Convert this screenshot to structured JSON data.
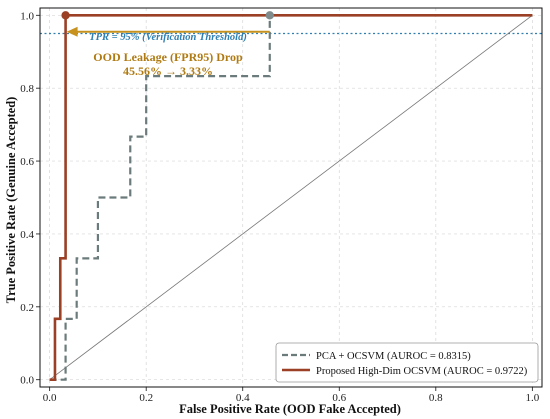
{
  "chart_data": {
    "type": "line",
    "xlabel": "False Positive Rate (OOD Fake Accepted)",
    "ylabel": "True Positive Rate (Genuine Accepted)",
    "xlim": [
      -0.02,
      1.02
    ],
    "ylim": [
      -0.02,
      1.02
    ],
    "xticks": [
      "0.0",
      "0.2",
      "0.4",
      "0.6",
      "0.8",
      "1.0"
    ],
    "yticks": [
      "0.0",
      "0.2",
      "0.4",
      "0.6",
      "0.8",
      "1.0"
    ],
    "grid": true,
    "legend_position": "bottom-right",
    "series": [
      {
        "name": "PCA + OCSVM (AUROC = 0.8315)",
        "style": "dashed",
        "color": "#6b7b7b",
        "x": [
          0.0,
          0.033,
          0.033,
          0.056,
          0.056,
          0.1,
          0.1,
          0.167,
          0.167,
          0.2,
          0.2,
          0.456,
          0.456,
          1.0
        ],
        "y": [
          0.0,
          0.0,
          0.167,
          0.167,
          0.333,
          0.333,
          0.5,
          0.5,
          0.667,
          0.667,
          0.833,
          0.833,
          1.0,
          1.0
        ]
      },
      {
        "name": "Proposed High-Dim OCSVM (AUROC = 0.9722)",
        "style": "solid",
        "color": "#9b3f25",
        "x": [
          0.0,
          0.011,
          0.011,
          0.022,
          0.022,
          0.033,
          0.033,
          1.0
        ],
        "y": [
          0.0,
          0.0,
          0.167,
          0.167,
          0.333,
          0.333,
          1.0,
          1.0
        ]
      },
      {
        "name": "",
        "style": "solid-thin",
        "color": "#777777",
        "x": [
          0.0,
          1.0
        ],
        "y": [
          0.0,
          1.0
        ]
      }
    ],
    "threshold_line": {
      "y": 0.95,
      "color": "#2f7fb0"
    },
    "markers": [
      {
        "x": 0.456,
        "y": 1.0,
        "color": "#808c8c"
      },
      {
        "x": 0.033,
        "y": 1.0,
        "color": "#9b3f25"
      }
    ],
    "arrow": {
      "from": [
        0.456,
        0.955
      ],
      "to": [
        0.033,
        0.955
      ],
      "color": "#c7921d"
    },
    "annotations": {
      "threshold_text": "TPR = 95% (Verification Threshold)",
      "threshold_color": "#2f7fb0",
      "drop_line1": "OOD Leakage (FPR95) Drop",
      "drop_line2": "45.56% → 3.33%",
      "drop_color": "#b07a12"
    }
  }
}
